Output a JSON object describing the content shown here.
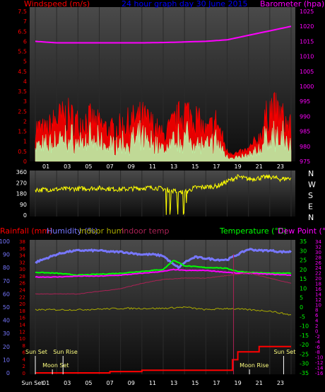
{
  "colors": {
    "background": "#000000",
    "plot_top": "#4a4a4a",
    "plot_bottom": "#0c0c0c",
    "grid": "#2a2a2a",
    "wind": "#ff0000",
    "gust_fill": "#e60000",
    "avg_wind": "#b8ffb0",
    "barometer": "#ff00ff",
    "direction": "#ffff00",
    "rainfall": "#ff0000",
    "humidity": "#7777ff",
    "indoor_hum": "#aaaa00",
    "indoor_temp": "#aa2255",
    "temperature": "#00ff00",
    "dew_point": "#ff00ff",
    "axis_white": "#ffffff"
  },
  "header": {
    "windspeed": "Windspeed (m/s)",
    "graph_day": "24 hour graph day  30 June 2015",
    "barometer": "Barometer (hpa)"
  },
  "headers2": {
    "rainfall": "Rainfall (mm)",
    "humidity": "Humidity (%)",
    "indoor_hum": "Indoor hum",
    "indoor_temp": "Indoor temp",
    "temperature": "Temperature (°C)",
    "dew_point": "Dew Point (°C)"
  },
  "compass": [
    "N",
    "W",
    "S",
    "E",
    "N"
  ],
  "events": {
    "sun_set": "Sun Set",
    "sun_rise": "Sun Rise",
    "moon_set": "Moon Set",
    "moon_rise": "Moon Rise",
    "sun_set_late": "Sun Set",
    "bottom_label": "Sun Set"
  },
  "chart_data": [
    {
      "type": "line",
      "title": "24 hour graph day  30 June 2015",
      "x_ticks": [
        "01",
        "03",
        "05",
        "07",
        "09",
        "11",
        "13",
        "15",
        "17",
        "19",
        "21",
        "23"
      ],
      "y_left_label": "Windspeed (m/s)",
      "y_left_ticks": [
        "7.5",
        "7",
        "6.5",
        "6",
        "5.5",
        "5",
        "4.5",
        "4",
        "3.5",
        "3",
        "2.5",
        "2",
        "1.5",
        "1",
        "0.5",
        "0"
      ],
      "ylim_left": [
        0,
        7.5
      ],
      "y_right_label": "Barometer (hpa)",
      "y_right_ticks": [
        "1025",
        "1020",
        "1015",
        "1010",
        "1005",
        "1000",
        "995",
        "990",
        "985",
        "980",
        "975"
      ],
      "ylim_right": [
        975,
        1025
      ],
      "series": [
        {
          "name": "Windspeed (m/s)",
          "axis": "left",
          "hours": [
            0,
            1,
            2,
            3,
            4,
            5,
            6,
            7,
            8,
            9,
            10,
            11,
            12,
            13,
            14,
            15,
            16,
            17,
            18,
            19,
            20,
            21,
            22,
            23,
            24
          ],
          "values": [
            1.8,
            1.6,
            2.2,
            2.4,
            2.0,
            2.2,
            1.9,
            1.6,
            1.8,
            2.1,
            2.3,
            1.9,
            1.3,
            2.0,
            2.6,
            2.3,
            1.5,
            2.1,
            0.5,
            0.4,
            0.6,
            1.2,
            2.8,
            2.4,
            1.7
          ]
        },
        {
          "name": "Barometer (hpa)",
          "axis": "right",
          "hours": [
            0,
            2,
            4,
            6,
            8,
            10,
            12,
            14,
            16,
            18,
            20,
            22,
            24
          ],
          "values": [
            1015,
            1014.5,
            1014.5,
            1014.5,
            1014.5,
            1014.5,
            1014.6,
            1014.8,
            1015,
            1015.5,
            1017,
            1018.5,
            1020
          ]
        }
      ]
    },
    {
      "type": "scatter",
      "x_ticks": [
        "01",
        "03",
        "05",
        "07",
        "09",
        "11",
        "13",
        "15",
        "17",
        "19",
        "21",
        "23"
      ],
      "y_ticks": [
        "360",
        "270",
        "180",
        "90",
        "0"
      ],
      "ylim": [
        0,
        360
      ],
      "right_labels": [
        "N",
        "W",
        "S",
        "E",
        "N"
      ],
      "hours": [
        0,
        2,
        4,
        6,
        8,
        10,
        11,
        12,
        13,
        14,
        15,
        16,
        17,
        18,
        19,
        20,
        21,
        22,
        23,
        24
      ],
      "values": [
        210,
        215,
        220,
        225,
        215,
        225,
        230,
        220,
        200,
        190,
        230,
        235,
        240,
        280,
        320,
        300,
        310,
        320,
        300,
        310
      ]
    },
    {
      "type": "line",
      "x_ticks": [
        "Sun Set",
        "01",
        "03",
        "05",
        "07",
        "09",
        "11",
        "13",
        "15",
        "17",
        "19",
        "21",
        "23"
      ],
      "rainfall_ticks": [
        "100",
        "90",
        "80",
        "70",
        "60",
        "50",
        "40",
        "30",
        "20",
        "10",
        "0"
      ],
      "rainfall_ylim": [
        0,
        100
      ],
      "humidity_ticks": [
        "38",
        "36",
        "34",
        "32",
        "30",
        "28",
        "26",
        "24",
        "22",
        "20",
        "18",
        "16",
        "14",
        "12",
        "10",
        "8",
        "6",
        "4",
        "2",
        "0"
      ],
      "humidity_ylim": [
        0,
        38
      ],
      "temperature_ticks": [
        "35",
        "30",
        "25",
        "20",
        "15",
        "10",
        "5",
        "0",
        "-5",
        "-10",
        "-15",
        "-20",
        "-25",
        "-30",
        "-35"
      ],
      "temperature_ylim": [
        -35,
        35
      ],
      "indoor_temp_ticks": [
        "34",
        "32",
        "30",
        "28",
        "26",
        "24",
        "22",
        "20",
        "18",
        "16",
        "14",
        "12",
        "10",
        "8",
        "6",
        "4",
        "2",
        "0",
        "-2",
        "-4",
        "-6",
        "-8",
        "-10",
        "-12",
        "-14",
        "-16"
      ],
      "indoor_temp_ylim": [
        -16,
        34
      ],
      "series": [
        {
          "name": "Humidity (%)",
          "axis": "rainfall",
          "hours": [
            0,
            1,
            2,
            3,
            4,
            5,
            6,
            7,
            8,
            9,
            10,
            11,
            12,
            13,
            13.5,
            14,
            15,
            16,
            17,
            18,
            19,
            20,
            21,
            22,
            23,
            24
          ],
          "values": [
            84,
            87,
            90,
            92,
            93,
            93,
            93,
            92,
            92,
            91,
            90,
            90,
            89,
            82,
            80,
            84,
            88,
            87,
            86,
            86,
            90,
            94,
            93,
            93,
            92,
            92
          ]
        },
        {
          "name": "Temperature (°C)",
          "axis": "temperature",
          "hours": [
            0,
            2,
            4,
            6,
            8,
            10,
            12,
            13,
            14,
            15,
            16,
            17,
            18,
            19,
            20,
            22,
            24
          ],
          "values": [
            18.5,
            18,
            17,
            17.5,
            18,
            19,
            20,
            25,
            22,
            21.5,
            21,
            21,
            20.5,
            19,
            18.5,
            18,
            18
          ]
        },
        {
          "name": "Dew Point (°C)",
          "axis": "temperature",
          "hours": [
            0,
            2,
            4,
            6,
            8,
            10,
            12,
            13,
            14,
            15,
            16,
            17,
            18,
            19,
            20,
            22,
            24
          ],
          "values": [
            16,
            16,
            16.5,
            16.5,
            17,
            18,
            19,
            20,
            19.5,
            19.5,
            19.5,
            19,
            18.5,
            18,
            18,
            17.5,
            17
          ]
        },
        {
          "name": "Indoor temp",
          "axis": "indoor_temp",
          "hours": [
            0,
            4,
            8,
            10,
            12,
            14,
            16,
            18,
            20,
            22,
            24
          ],
          "values": [
            14,
            14,
            16,
            18,
            19.5,
            20,
            20,
            21,
            22,
            20,
            18
          ]
        },
        {
          "name": "Indoor hum",
          "axis": "rainfall",
          "hours": [
            0,
            4,
            8,
            12,
            14,
            16,
            18,
            20,
            22,
            24
          ],
          "values": [
            48,
            48,
            49,
            49,
            50,
            48,
            49,
            48,
            47,
            44
          ]
        },
        {
          "name": "Rainfall (mm)",
          "axis": "rainfall",
          "hours": [
            0,
            3,
            6,
            7,
            10,
            13,
            16,
            18,
            18.5,
            19,
            20,
            21,
            22,
            23,
            24
          ],
          "values": [
            0,
            0,
            0,
            1,
            2,
            2,
            2,
            2,
            10,
            16,
            16,
            20,
            20,
            20,
            20
          ]
        }
      ]
    }
  ]
}
